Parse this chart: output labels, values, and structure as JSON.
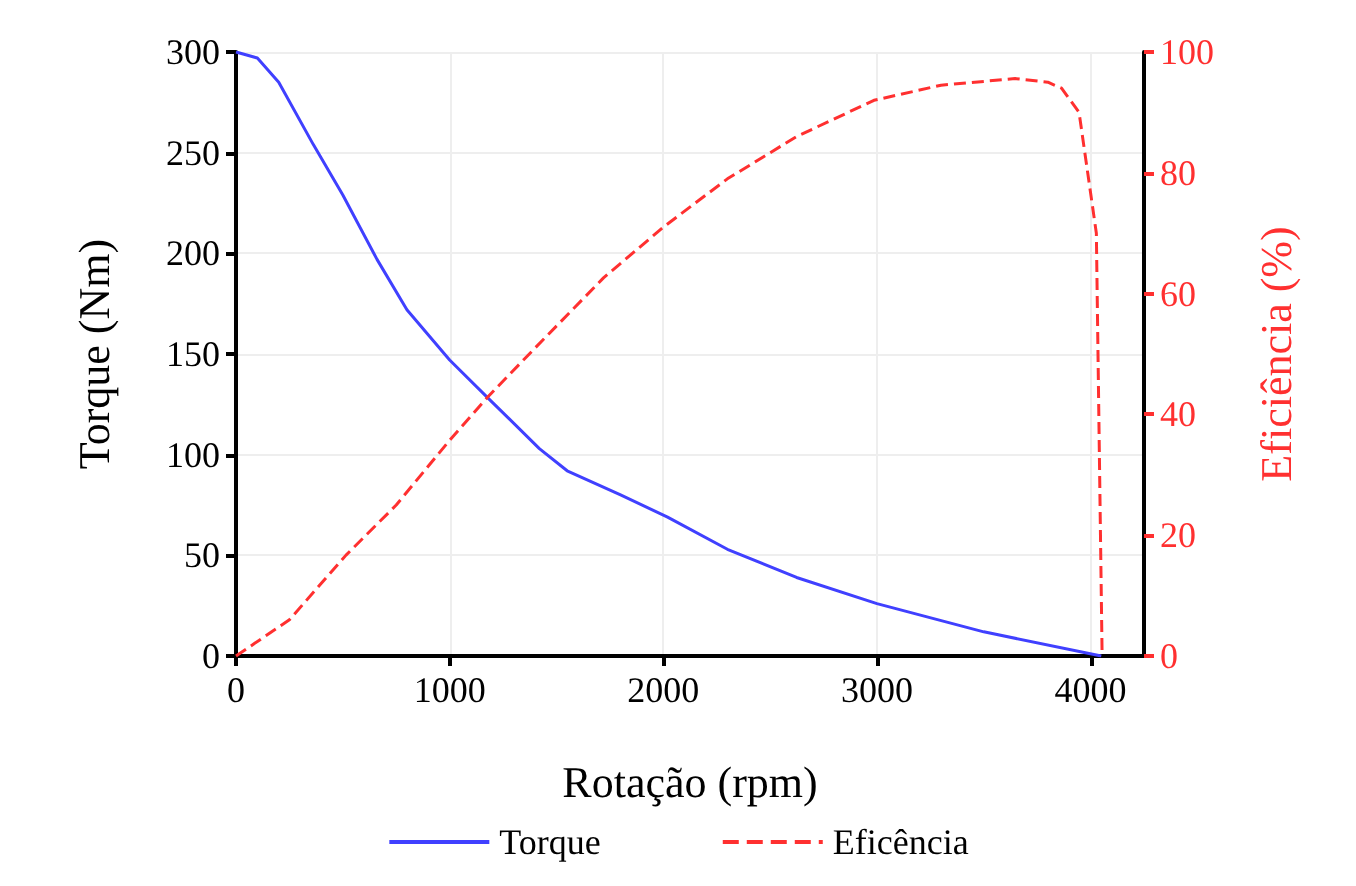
{
  "chart_data": {
    "type": "line",
    "xlabel": "Rotação (rpm)",
    "ylabel": "Torque (Nm)",
    "y2label": "Eficiência (%)",
    "xlim": [
      0,
      4250
    ],
    "xticks": [
      0,
      1000,
      2000,
      3000,
      4000
    ],
    "ylim": [
      0,
      300
    ],
    "yticks": [
      0,
      50,
      100,
      150,
      200,
      250,
      300
    ],
    "y2lim": [
      0,
      100
    ],
    "y2ticks": [
      0,
      20,
      40,
      60,
      80,
      100
    ],
    "grid": true,
    "legend": "bottom",
    "series": [
      {
        "name": "Torque",
        "color": "#4040ff",
        "line_style": "solid",
        "x": [
          0,
          100,
          200,
          362,
          500,
          660,
          800,
          1000,
          1200,
          1420,
          1550,
          1800,
          2020,
          2300,
          2624,
          3000,
          3500,
          4050
        ],
        "values": [
          300,
          297,
          285,
          254,
          229,
          197,
          172,
          147,
          126,
          103,
          92,
          80,
          69,
          53,
          39,
          26,
          12,
          0
        ]
      },
      {
        "name": "Eficência",
        "color": "#ff3030",
        "line_style": "dashed",
        "axis": "y2",
        "x": [
          0,
          250,
          515,
          750,
          995,
          1176,
          1400,
          1720,
          2000,
          2300,
          2624,
          2986,
          3300,
          3647,
          3800,
          3864,
          3946,
          4027,
          4054
        ],
        "values": [
          0,
          6,
          16.7,
          25,
          35.5,
          42.8,
          51,
          62.6,
          71,
          79,
          86,
          92,
          94.5,
          95.6,
          95,
          94,
          90,
          70,
          0
        ]
      }
    ]
  }
}
